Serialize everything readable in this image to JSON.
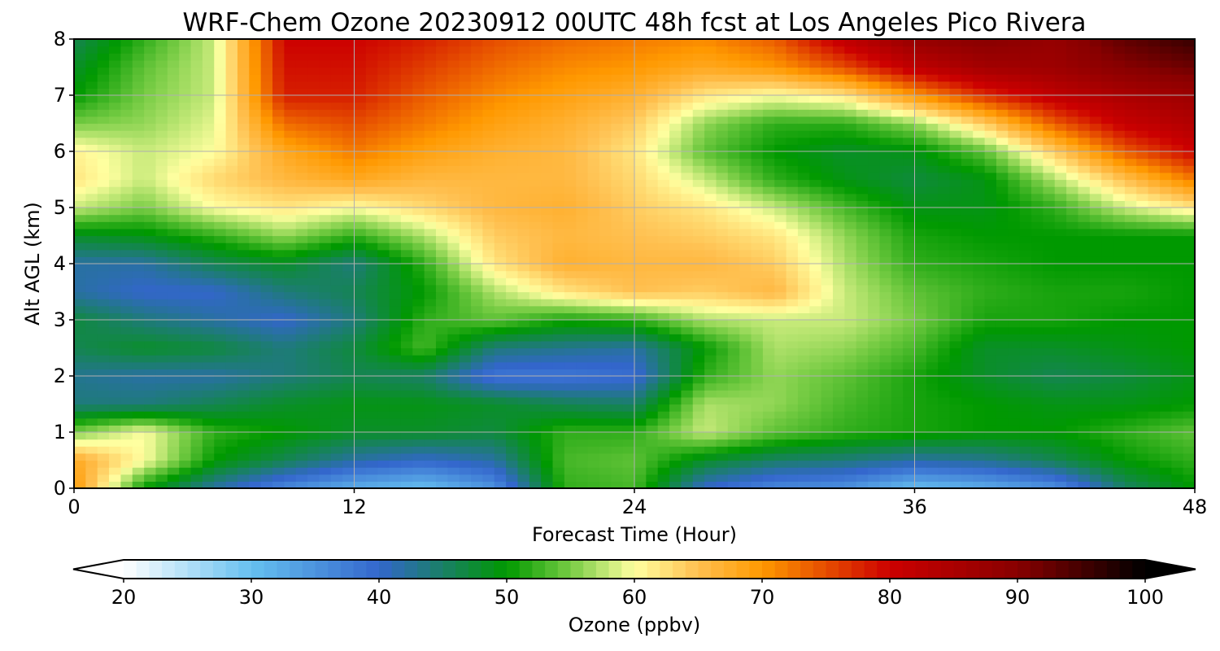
{
  "chart_data": {
    "type": "heatmap",
    "title": "WRF-Chem Ozone  20230912 00UTC 48h fcst at Los Angeles Pico Rivera",
    "xlabel": "Forecast Time (Hour)",
    "ylabel": "Alt AGL (km)",
    "xlim": [
      0,
      48
    ],
    "ylim": [
      0,
      8
    ],
    "x_ticks": [
      0,
      12,
      24,
      36,
      48
    ],
    "y_ticks": [
      0,
      1,
      2,
      3,
      4,
      5,
      6,
      7,
      8
    ],
    "grid": true,
    "colorbar": {
      "label": "Ozone  (ppbv)",
      "min": 20,
      "max": 100,
      "ticks": [
        20,
        30,
        40,
        50,
        60,
        70,
        80,
        90,
        100
      ],
      "extend": "both",
      "placement": "bottom",
      "colors": [
        {
          "value": 20,
          "color": "#ffffff"
        },
        {
          "value": 30,
          "color": "#66c0f0"
        },
        {
          "value": 40,
          "color": "#3366cc"
        },
        {
          "value": 50,
          "color": "#009900"
        },
        {
          "value": 55,
          "color": "#77cc44"
        },
        {
          "value": 60,
          "color": "#ffffa0"
        },
        {
          "value": 65,
          "color": "#ffc050"
        },
        {
          "value": 70,
          "color": "#ff9900"
        },
        {
          "value": 80,
          "color": "#cc0000"
        },
        {
          "value": 90,
          "color": "#880000"
        },
        {
          "value": 100,
          "color": "#000000"
        }
      ]
    },
    "x": [
      0,
      3,
      6,
      9,
      12,
      15,
      18,
      21,
      24,
      27,
      30,
      33,
      36,
      39,
      42,
      45,
      48
    ],
    "y": [
      0,
      0.5,
      1,
      1.5,
      2,
      2.5,
      3,
      3.5,
      4,
      4.5,
      5,
      5.5,
      6,
      6.5,
      7,
      7.5,
      8
    ],
    "z": [
      [
        70,
        50,
        42,
        36,
        32,
        30,
        35,
        52,
        53,
        40,
        36,
        35,
        30,
        32,
        35,
        45,
        50
      ],
      [
        68,
        60,
        50,
        46,
        42,
        40,
        42,
        53,
        54,
        48,
        45,
        44,
        42,
        43,
        46,
        50,
        52
      ],
      [
        55,
        60,
        52,
        50,
        48,
        48,
        47,
        52,
        52,
        58,
        54,
        52,
        51,
        50,
        50,
        52,
        54
      ],
      [
        44,
        44,
        46,
        48,
        49,
        49,
        48,
        46,
        45,
        57,
        56,
        53,
        51,
        50,
        49,
        49,
        50
      ],
      [
        43,
        42,
        42,
        44,
        46,
        45,
        38,
        38,
        39,
        52,
        56,
        54,
        51,
        48,
        46,
        47,
        49
      ],
      [
        46,
        48,
        47,
        44,
        47,
        53,
        44,
        43,
        42,
        50,
        57,
        56,
        53,
        48,
        48,
        49,
        50
      ],
      [
        47,
        44,
        42,
        40,
        44,
        52,
        54,
        51,
        52,
        57,
        58,
        58,
        55,
        51,
        51,
        50,
        50
      ],
      [
        42,
        40,
        40,
        44,
        46,
        50,
        57,
        62,
        65,
        64,
        66,
        58,
        54,
        52,
        51,
        51,
        50
      ],
      [
        42,
        42,
        46,
        48,
        44,
        52,
        62,
        67,
        66,
        66,
        64,
        57,
        52,
        51,
        50,
        50,
        50
      ],
      [
        48,
        49,
        52,
        56,
        52,
        57,
        64,
        66,
        65,
        64,
        62,
        56,
        51,
        50,
        50,
        50,
        50
      ],
      [
        58,
        55,
        60,
        62,
        60,
        63,
        66,
        67,
        64,
        62,
        58,
        53,
        49,
        49,
        52,
        58,
        62
      ],
      [
        62,
        58,
        63,
        66,
        68,
        66,
        66,
        66,
        63,
        58,
        52,
        49,
        47,
        49,
        57,
        65,
        72
      ],
      [
        61,
        58,
        60,
        68,
        72,
        69,
        67,
        66,
        62,
        54,
        50,
        48,
        49,
        54,
        64,
        74,
        80
      ],
      [
        55,
        56,
        59,
        73,
        75,
        72,
        69,
        67,
        64,
        56,
        52,
        52,
        56,
        64,
        74,
        81,
        84
      ],
      [
        50,
        55,
        58,
        78,
        78,
        74,
        71,
        69,
        67,
        62,
        60,
        62,
        70,
        77,
        82,
        85,
        87
      ],
      [
        48,
        54,
        58,
        79,
        79,
        76,
        73,
        71,
        70,
        68,
        70,
        75,
        82,
        86,
        87,
        90,
        92
      ],
      [
        46,
        52,
        58,
        80,
        80,
        78,
        75,
        73,
        72,
        71,
        74,
        82,
        88,
        90,
        88,
        93,
        96
      ]
    ]
  }
}
